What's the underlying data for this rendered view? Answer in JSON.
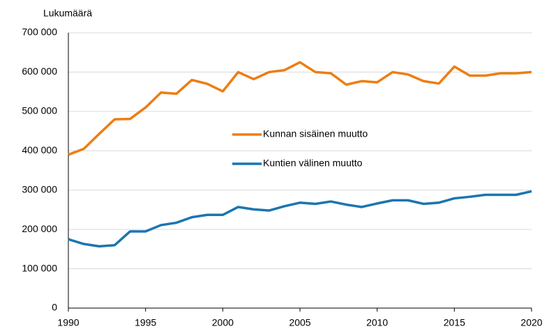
{
  "chart_data": {
    "type": "line",
    "y_axis_label": "Lukumäärä",
    "x": [
      1990,
      1991,
      1992,
      1993,
      1994,
      1995,
      1996,
      1997,
      1998,
      1999,
      2000,
      2001,
      2002,
      2003,
      2004,
      2005,
      2006,
      2007,
      2008,
      2009,
      2010,
      2011,
      2012,
      2013,
      2014,
      2015,
      2016,
      2017,
      2018,
      2019,
      2020
    ],
    "series": [
      {
        "name": "Kunnan sisäinen muutto",
        "color": "#ee7d11",
        "values": [
          390000,
          405000,
          443000,
          480000,
          481000,
          510000,
          548000,
          545000,
          580000,
          570000,
          551000,
          600000,
          582000,
          600000,
          605000,
          625000,
          600000,
          597000,
          568000,
          577000,
          574000,
          600000,
          594000,
          577000,
          571000,
          614000,
          591000,
          591000,
          597000,
          597000,
          600000
        ]
      },
      {
        "name": "Kuntien välinen muutto",
        "color": "#1b75b0",
        "values": [
          175000,
          163000,
          157000,
          160000,
          195000,
          195000,
          211000,
          217000,
          231000,
          237000,
          237000,
          257000,
          251000,
          248000,
          259000,
          268000,
          265000,
          271000,
          263000,
          257000,
          266000,
          274000,
          274000,
          265000,
          268000,
          279000,
          283000,
          288000,
          288000,
          288000,
          297000
        ]
      }
    ],
    "xlim": [
      1990,
      2020
    ],
    "xticks": [
      1990,
      1995,
      2000,
      2005,
      2010,
      2015,
      2020
    ],
    "ylim": [
      0,
      700000
    ],
    "yticks": [
      0,
      {
        "value": 100000,
        "label": "100 000"
      },
      {
        "value": 200000,
        "label": "200 000"
      },
      {
        "value": 300000,
        "label": "300 000"
      },
      {
        "value": 400000,
        "label": "400 000"
      },
      {
        "value": 500000,
        "label": "500 000"
      },
      {
        "value": 600000,
        "label": "600 000"
      },
      {
        "value": 700000,
        "label": "700 000"
      }
    ],
    "grid": true,
    "legend": "center"
  }
}
